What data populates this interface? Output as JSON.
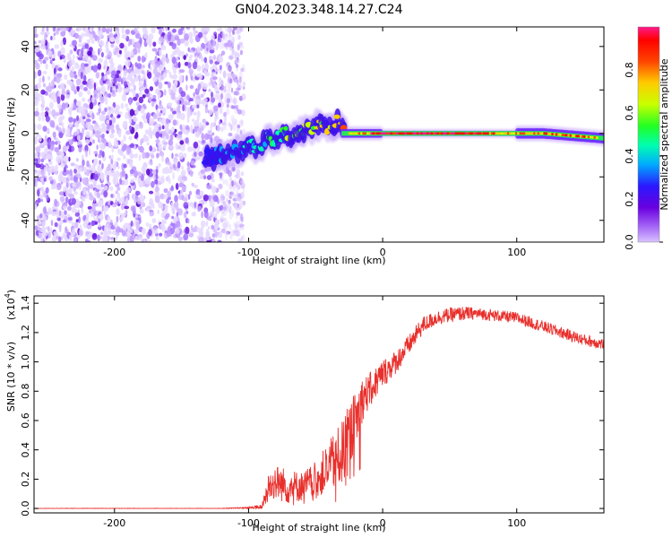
{
  "title": "GN04.2023.348.14.27.C24",
  "chart_data": [
    {
      "type": "heatmap",
      "name": "spectrogram",
      "xlabel": "Height of straight line (km)",
      "ylabel": "Frequency (Hz)",
      "xlim": [
        -260,
        165
      ],
      "ylim": [
        -50,
        49
      ],
      "xticks": [
        -200,
        -100,
        0,
        100
      ],
      "yticks": [
        -40,
        -20,
        0,
        20,
        40
      ],
      "colorbar": {
        "label": "Normalized spectral amplitude",
        "range": [
          0.0,
          1.0
        ],
        "ticks": [
          0.0,
          0.2,
          0.4,
          0.6,
          0.8
        ],
        "colormap": [
          "#d8c2ff",
          "#9f5cf5",
          "#6a00e0",
          "#2a18ff",
          "#00aaff",
          "#00ffb0",
          "#22ff22",
          "#c8ff00",
          "#ffcc00",
          "#ff4400",
          "#ff0000",
          "#ff1a8c"
        ]
      },
      "regions": [
        {
          "label": "noise",
          "x_range": [
            -260,
            -110
          ],
          "freq_range": [
            -50,
            49
          ],
          "amplitude": [
            0.0,
            0.15
          ]
        },
        {
          "label": "signal_onset",
          "x_range": [
            -130,
            -30
          ],
          "freq_center": [
            -12,
            8
          ],
          "amplitude": [
            0.1,
            0.65
          ]
        },
        {
          "label": "carrier",
          "x_range": [
            -30,
            165
          ],
          "freq_center": [
            0,
            -2
          ],
          "amplitude": [
            0.5,
            1.0
          ]
        }
      ]
    },
    {
      "type": "line",
      "name": "snr",
      "xlabel": "Height of straight line (km)",
      "ylabel": "SNR (10 * v/v)",
      "multiplier": "(x10",
      "multiplier_exp": "4",
      "multiplier_close": ")",
      "xlim": [
        -260,
        165
      ],
      "ylim": [
        -0.03,
        1.45
      ],
      "xticks": [
        -200,
        -100,
        0,
        100
      ],
      "yticks": [
        "0.0",
        "0.2",
        "0.4",
        "0.6",
        "0.8",
        "1.0",
        "1.2",
        "1.4"
      ],
      "series": [
        {
          "name": "SNR",
          "color": "#e8302c",
          "x": [
            -260,
            -200,
            -120,
            -100,
            -90,
            -85,
            -80,
            -70,
            -60,
            -50,
            -40,
            -30,
            -25,
            -20,
            -15,
            -10,
            0,
            10,
            20,
            30,
            40,
            50,
            60,
            70,
            80,
            90,
            100,
            110,
            120,
            130,
            140,
            150,
            165
          ],
          "values": [
            0.0,
            0.0,
            0.0,
            0.005,
            0.01,
            0.15,
            0.18,
            0.15,
            0.15,
            0.2,
            0.28,
            0.38,
            0.5,
            0.6,
            0.75,
            0.8,
            0.92,
            1.0,
            1.12,
            1.25,
            1.3,
            1.32,
            1.33,
            1.33,
            1.32,
            1.31,
            1.3,
            1.27,
            1.24,
            1.21,
            1.18,
            1.15,
            1.12
          ],
          "noise_amplitude": [
            0.002,
            0.002,
            0.002,
            0.005,
            0.02,
            0.1,
            0.12,
            0.12,
            0.1,
            0.12,
            0.18,
            0.22,
            0.22,
            0.2,
            0.15,
            0.12,
            0.1,
            0.08,
            0.07,
            0.06,
            0.05,
            0.05,
            0.05,
            0.04,
            0.04,
            0.04,
            0.04,
            0.04,
            0.04,
            0.04,
            0.04,
            0.04,
            0.04
          ]
        }
      ]
    }
  ]
}
